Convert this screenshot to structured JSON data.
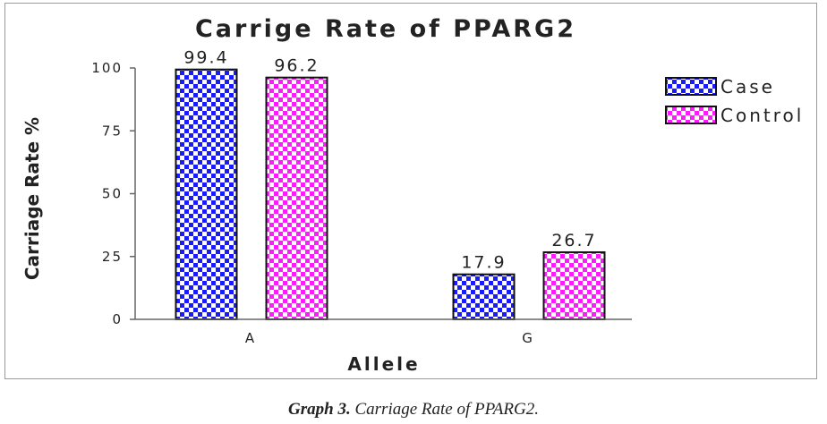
{
  "chart_data": {
    "type": "bar",
    "title": "Carrige Rate of PPARG2",
    "xlabel": "Allele",
    "ylabel": "Carriage Rate %",
    "categories": [
      "A",
      "G"
    ],
    "series": [
      {
        "name": "Case",
        "values": [
          99.4,
          17.9
        ],
        "color": "#1a1aff",
        "pattern": "checker"
      },
      {
        "name": "Control",
        "values": [
          96.2,
          26.7
        ],
        "color": "#ff1aff",
        "pattern": "checker"
      }
    ],
    "yticks": [
      0,
      25,
      50,
      75,
      100
    ],
    "ylim": [
      0,
      100
    ],
    "grid": false,
    "legend": "right",
    "data_labels": true
  },
  "caption": {
    "prefix": "Graph 3.",
    "text": " Carriage Rate of PPARG2."
  }
}
